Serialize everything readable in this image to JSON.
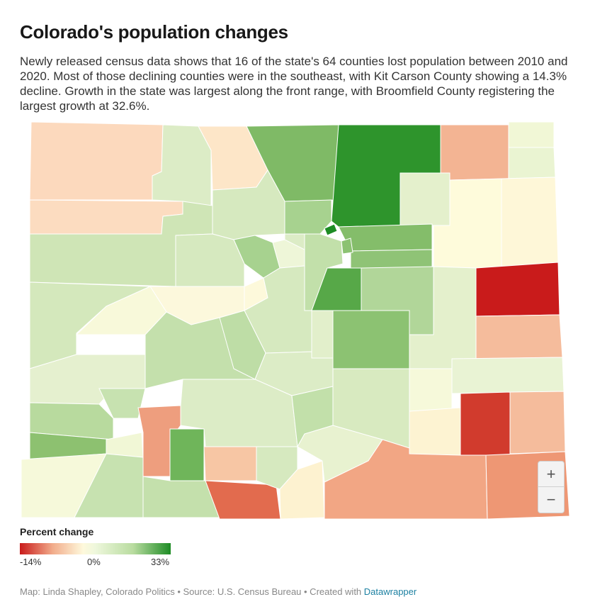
{
  "header": {
    "title": "Colorado's population changes",
    "description": "Newly released census data shows that 16 of the state's 64 counties lost population between 2010 and 2020. Most of those declining counties were in the southeast, with Kit Carson County showing a 14.3% decline. Growth in the state was largest along the front range, with Broomfield County registering the largest growth at 32.6%."
  },
  "map": {
    "region": "Colorado",
    "colors": {
      "strong_decline": "#c91b1b",
      "decline": "#de4a35",
      "mild_decline": "#f3b493",
      "slight_decline": "#fde0c4",
      "neutral": "#fef9dc",
      "slight_growth": "#e6f2cf",
      "growth": "#b5d99b",
      "strong_growth": "#6fb55a",
      "max_growth": "#2e942c"
    },
    "zoom": {
      "in_label": "+",
      "out_label": "−"
    }
  },
  "legend": {
    "title": "Percent change",
    "min_label": "-14%",
    "mid_label": "0%",
    "max_label": "33%",
    "min": -14,
    "mid": 0,
    "max": 33
  },
  "footer": {
    "credits": "Map: Linda Shapley, Colorado Politics • Source: U.S. Census Bureau • Created with ",
    "tool": "Datawrapper"
  }
}
